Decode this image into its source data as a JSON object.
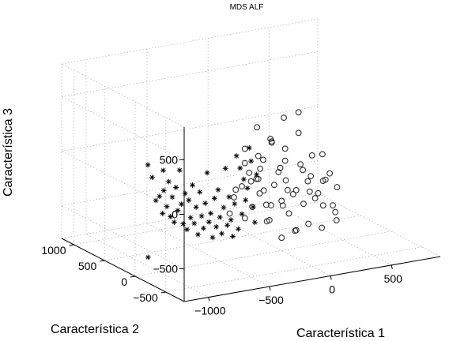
{
  "chart_data": {
    "type": "scatter",
    "title": "MDS ALF",
    "xlabel": "Característica 1",
    "ylabel": "Característica 2",
    "zlabel": "Característica 3",
    "x_ticks": [
      "−1000",
      "−500",
      "0",
      "500"
    ],
    "y_ticks": [
      "1000",
      "500",
      "0",
      "−500"
    ],
    "z_ticks": [
      "500",
      "0",
      "−500"
    ],
    "xlim": [
      -1200,
      900
    ],
    "ylim": [
      -800,
      1200
    ],
    "zlim": [
      -800,
      800
    ],
    "grid": true,
    "series": [
      {
        "marker": "star",
        "color": "#000000",
        "points": [
          [
            -920,
            350,
            65
          ],
          [
            -900,
            320,
            -45
          ],
          [
            -880,
            300,
            -255
          ],
          [
            -860,
            280,
            -215
          ],
          [
            -850,
            250,
            -365
          ],
          [
            -840,
            260,
            25
          ],
          [
            -830,
            270,
            -165
          ],
          [
            -820,
            240,
            -305
          ],
          [
            -810,
            230,
            -75
          ],
          [
            -800,
            220,
            -395
          ],
          [
            -790,
            210,
            -215
          ],
          [
            -780,
            200,
            -445
          ],
          [
            -770,
            190,
            -125
          ],
          [
            -760,
            180,
            -335
          ],
          [
            -750,
            170,
            35
          ],
          [
            -740,
            160,
            -275
          ],
          [
            -730,
            150,
            -455
          ],
          [
            -720,
            140,
            -175
          ],
          [
            -710,
            130,
            -505
          ],
          [
            -700,
            120,
            -235
          ],
          [
            -690,
            110,
            -395
          ],
          [
            -680,
            100,
            -95
          ],
          [
            -670,
            90,
            -445
          ],
          [
            -660,
            80,
            -295
          ],
          [
            -650,
            70,
            -545
          ],
          [
            -640,
            60,
            -155
          ],
          [
            -630,
            50,
            -375
          ],
          [
            -620,
            40,
            -485
          ],
          [
            -610,
            30,
            -255
          ],
          [
            -600,
            20,
            25
          ],
          [
            -590,
            10,
            -425
          ],
          [
            -580,
            0,
            -345
          ],
          [
            -570,
            -10,
            -565
          ],
          [
            -560,
            -20,
            -205
          ],
          [
            -550,
            -30,
            -465
          ],
          [
            -540,
            -40,
            -125
          ],
          [
            -530,
            -50,
            -375
          ],
          [
            -520,
            -60,
            -525
          ],
          [
            -510,
            -70,
            -285
          ],
          [
            -500,
            -80,
            75
          ],
          [
            -490,
            -90,
            -445
          ],
          [
            -480,
            -100,
            -185
          ],
          [
            -470,
            -110,
            -395
          ],
          [
            -460,
            -120,
            -545
          ],
          [
            -450,
            -130,
            -245
          ],
          [
            -440,
            -140,
            195
          ],
          [
            -430,
            -150,
            -475
          ],
          [
            -420,
            -160,
            85
          ],
          [
            -410,
            -170,
            -335
          ],
          [
            -400,
            -180,
            -15
          ],
          [
            -390,
            -190,
            -205
          ],
          [
            -380,
            -200,
            -95
          ],
          [
            -370,
            -210,
            275
          ],
          [
            -360,
            -220,
            155
          ],
          [
            -350,
            -230,
            -265
          ],
          [
            -340,
            -240,
            -405
          ],
          [
            -330,
            -250,
            35
          ],
          [
            -1200,
            -210,
            -565
          ]
        ]
      },
      {
        "marker": "circle",
        "color": "#000000",
        "points": [
          [
            -350,
            150,
            -435
          ],
          [
            -300,
            180,
            -305
          ],
          [
            -250,
            150,
            -205
          ],
          [
            -200,
            130,
            -85
          ],
          [
            -150,
            110,
            -145
          ],
          [
            -100,
            90,
            -255
          ],
          [
            -50,
            70,
            -395
          ],
          [
            0,
            50,
            -95
          ],
          [
            50,
            30,
            -175
          ],
          [
            100,
            10,
            -305
          ],
          [
            150,
            -10,
            -35
          ],
          [
            200,
            -30,
            -195
          ],
          [
            250,
            -50,
            -355
          ],
          [
            300,
            -70,
            45
          ],
          [
            350,
            -90,
            -135
          ],
          [
            400,
            -110,
            -265
          ],
          [
            -300,
            0,
            -445
          ],
          [
            -250,
            -20,
            -345
          ],
          [
            -200,
            -40,
            -225
          ],
          [
            -150,
            -60,
            -485
          ],
          [
            -100,
            -80,
            -155
          ],
          [
            -50,
            -100,
            -305
          ],
          [
            0,
            -120,
            -425
          ],
          [
            50,
            -140,
            -215
          ],
          [
            100,
            -160,
            -345
          ],
          [
            150,
            -180,
            -95
          ],
          [
            200,
            -200,
            -255
          ],
          [
            250,
            -220,
            -135
          ],
          [
            300,
            -240,
            -375
          ],
          [
            -200,
            200,
            115
          ],
          [
            -100,
            180,
            35
          ],
          [
            0,
            160,
            155
          ],
          [
            100,
            140,
            75
          ],
          [
            200,
            120,
            205
          ],
          [
            300,
            100,
            -15
          ],
          [
            -150,
            300,
            -55
          ],
          [
            -50,
            280,
            -215
          ],
          [
            50,
            260,
            105
          ],
          [
            150,
            240,
            -75
          ],
          [
            250,
            220,
            355
          ],
          [
            0,
            400,
            215
          ],
          [
            100,
            380,
            95
          ],
          [
            200,
            360,
            275
          ],
          [
            -250,
            -300,
            -385
          ],
          [
            -150,
            -320,
            -265
          ],
          [
            -50,
            -340,
            -505
          ],
          [
            50,
            -360,
            -165
          ],
          [
            150,
            -380,
            -305
          ],
          [
            250,
            -400,
            -455
          ],
          [
            -100,
            -200,
            -605
          ],
          [
            0,
            -220,
            -555
          ],
          [
            100,
            -240,
            -505
          ],
          [
            200,
            -260,
            -555
          ],
          [
            300,
            -280,
            -425
          ],
          [
            -200,
            100,
            -155
          ],
          [
            -100,
            50,
            -375
          ],
          [
            50,
            0,
            -255
          ],
          [
            200,
            50,
            -115
          ],
          [
            350,
            20,
            -235
          ],
          [
            -50,
            200,
            -15
          ],
          [
            100,
            220,
            -125
          ],
          [
            -250,
            250,
            -265
          ],
          [
            -150,
            50,
            -35
          ]
        ]
      }
    ]
  }
}
